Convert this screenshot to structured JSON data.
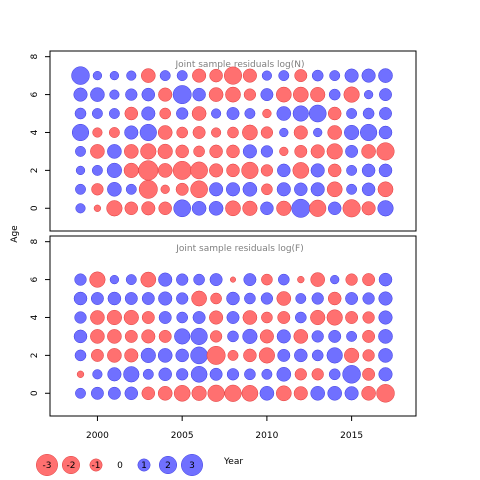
{
  "chart_data": {
    "type": "scatter",
    "variant": "bubble",
    "xlabel": "Year",
    "ylabel": "Age",
    "x_ticks": [
      2000,
      2005,
      2010,
      2015
    ],
    "y_ticks": [
      0,
      2,
      4,
      6,
      8
    ],
    "xlim": [
      1997.2,
      2018.8
    ],
    "ylim": [
      -1.2,
      8.3
    ],
    "colors": {
      "negative": "#ff7070",
      "positive": "#7070ff",
      "edge_negative": "#e03c3c",
      "edge_positive": "#3c3ce0"
    },
    "legend": {
      "placement": "bottom-left",
      "values": [
        -3,
        -2,
        -1,
        0,
        1,
        2,
        3
      ],
      "labels": [
        "-3",
        "-2",
        "-1",
        "0",
        "1",
        "2",
        "3"
      ]
    },
    "years": [
      1999,
      2000,
      2001,
      2002,
      2003,
      2004,
      2005,
      2006,
      2007,
      2008,
      2009,
      2010,
      2011,
      2012,
      2013,
      2014,
      2015,
      2016,
      2017
    ],
    "ages": [
      0,
      1,
      2,
      3,
      4,
      5,
      6,
      7
    ],
    "panels": [
      {
        "title": "Joint sample residuals log(N)",
        "residuals": [
          [
            0.6,
            -0.3,
            -1.6,
            -1.1,
            -1.2,
            -1.1,
            1.9,
            1.3,
            1.3,
            -1.5,
            -1.4,
            1.1,
            -1.4,
            2.2,
            -1.8,
            1.1,
            -2.0,
            -1.2,
            1.6
          ],
          [
            0.7,
            -0.9,
            1.3,
            0.7,
            -2.2,
            -0.5,
            -1.0,
            -1.9,
            1.2,
            1.2,
            1.3,
            -0.8,
            1.2,
            1.1,
            1.2,
            -1.5,
            0.7,
            1.1,
            -1.5
          ],
          [
            0.5,
            0.7,
            1.4,
            -1.4,
            -2.5,
            -1.3,
            -2.2,
            -1.9,
            -1.2,
            -1.1,
            -1.8,
            -0.9,
            1.1,
            -1.7,
            1.2,
            -1.1,
            0.7,
            1.1,
            1.1
          ],
          [
            0.7,
            -1.3,
            1.3,
            -1.3,
            -1.6,
            -1.4,
            -1.1,
            -0.8,
            -1.1,
            -1.1,
            1.2,
            0.9,
            -0.5,
            -1.0,
            -1.2,
            -1.6,
            1.0,
            -1.3,
            -2.0
          ],
          [
            1.8,
            -0.6,
            -0.7,
            1.2,
            1.8,
            -1.3,
            -0.8,
            -1.0,
            -0.6,
            -0.8,
            -1.5,
            -0.9,
            0.5,
            -1.2,
            0.5,
            -1.3,
            1.4,
            1.8,
            1.1
          ],
          [
            0.8,
            0.7,
            0.7,
            -1.1,
            1.2,
            -0.8,
            0.9,
            -1.3,
            0.6,
            1.0,
            0.7,
            -0.5,
            1.3,
            1.6,
            1.9,
            -1.1,
            0.7,
            0.8,
            1.0
          ],
          [
            1.2,
            1.3,
            0.6,
            0.9,
            1.1,
            -1.2,
            2.2,
            1.1,
            -1.3,
            -1.5,
            -0.9,
            1.0,
            -1.5,
            -1.5,
            -1.4,
            0.8,
            -1.6,
            0.5,
            1.0
          ],
          [
            2.1,
            0.5,
            0.5,
            0.6,
            -1.3,
            0.7,
            0.7,
            -1.2,
            -1.1,
            -2.0,
            -1.2,
            0.6,
            0.7,
            -1.0,
            0.8,
            0.7,
            1.2,
            1.2,
            1.3
          ]
        ]
      },
      {
        "title": "Joint sample residuals log(F)",
        "residuals": [
          [
            0.7,
            1.0,
            1.0,
            1.1,
            -1.1,
            -1.3,
            -1.7,
            -1.4,
            -1.8,
            -1.8,
            -1.7,
            1.3,
            -1.5,
            -1.2,
            1.3,
            1.3,
            1.2,
            -1.3,
            -2.1
          ],
          [
            -0.3,
            0.6,
            1.2,
            1.6,
            0.7,
            1.1,
            0.9,
            1.7,
            1.0,
            0.9,
            0.8,
            0.7,
            1.3,
            -0.9,
            -0.9,
            0.8,
            2.1,
            -1.0,
            1.2
          ],
          [
            0.8,
            -1.0,
            -1.3,
            -1.2,
            1.4,
            1.3,
            1.1,
            1.9,
            -2.2,
            -0.7,
            -1.1,
            -1.6,
            1.0,
            1.1,
            0.8,
            1.6,
            -1.4,
            -0.9,
            1.3
          ],
          [
            1.1,
            -1.3,
            -1.3,
            -1.0,
            -1.2,
            -1.0,
            1.6,
            1.8,
            -0.9,
            0.8,
            1.4,
            -1.2,
            1.2,
            -1.3,
            0.9,
            1.0,
            0.7,
            -1.0,
            1.3
          ],
          [
            0.9,
            -1.3,
            -1.4,
            -1.4,
            -1.0,
            1.0,
            0.8,
            1.0,
            -1.2,
            1.0,
            -1.3,
            -0.8,
            -1.0,
            0.8,
            -1.4,
            -1.6,
            -1.0,
            -0.9,
            1.2
          ],
          [
            1.1,
            1.0,
            1.1,
            1.0,
            1.0,
            1.2,
            0.9,
            -1.5,
            -0.8,
            1.1,
            0.8,
            0.9,
            -1.3,
            0.7,
            0.9,
            -1.1,
            1.0,
            0.9,
            1.2
          ],
          [
            0.9,
            -1.6,
            0.5,
            0.7,
            -1.5,
            1.2,
            0.9,
            0.8,
            1.0,
            -0.2,
            1.0,
            -0.8,
            0.8,
            -0.3,
            -1.3,
            0.5,
            -0.9,
            -1.0,
            1.1
          ],
          null
        ]
      }
    ]
  }
}
